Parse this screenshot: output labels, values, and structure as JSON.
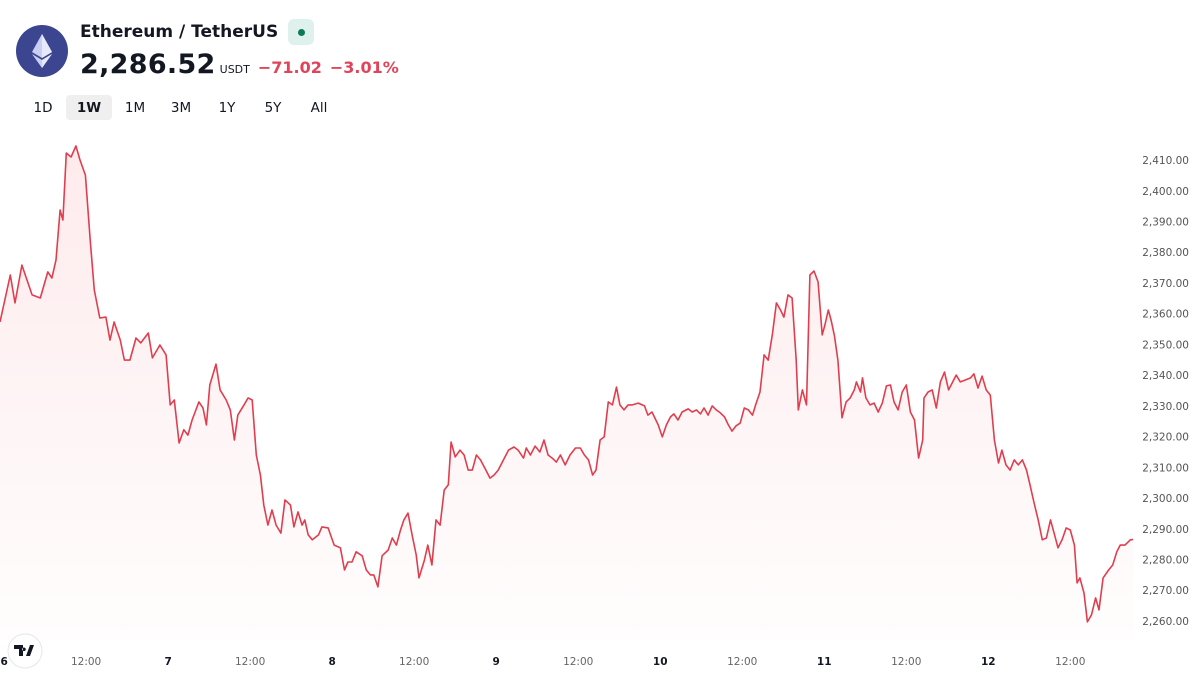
{
  "header": {
    "symbol": "Ethereum / TetherUS",
    "price": "2,286.52",
    "currency": "USDT",
    "change": "−71.02",
    "change_percent": "−3.01%"
  },
  "timeframes": {
    "options": [
      "1D",
      "1W",
      "1M",
      "3M",
      "1Y",
      "5Y",
      "All"
    ],
    "active": "1W"
  },
  "chart_data": {
    "type": "line",
    "color": "#e03e4e",
    "grid": false,
    "xlim": [
      -0.6,
      166.2
    ],
    "ylim": [
      2254,
      2416
    ],
    "xticks": [
      {
        "value": 0,
        "label": "6"
      },
      {
        "value": 12,
        "label": "12:00"
      },
      {
        "value": 24,
        "label": "7"
      },
      {
        "value": 36,
        "label": "12:00"
      },
      {
        "value": 48,
        "label": "8"
      },
      {
        "value": 60,
        "label": "12:00"
      },
      {
        "value": 72,
        "label": "9"
      },
      {
        "value": 84,
        "label": "12:00"
      },
      {
        "value": 96,
        "label": "10"
      },
      {
        "value": 108,
        "label": "12:00"
      },
      {
        "value": 120,
        "label": "11"
      },
      {
        "value": 132,
        "label": "12:00"
      },
      {
        "value": 144,
        "label": "12"
      },
      {
        "value": 156,
        "label": "12:00"
      }
    ],
    "yticks": [
      {
        "value": 2260,
        "label": "2,260.00"
      },
      {
        "value": 2270,
        "label": "2,270.00"
      },
      {
        "value": 2280,
        "label": "2,280.00"
      },
      {
        "value": 2290,
        "label": "2,290.00"
      },
      {
        "value": 2300,
        "label": "2,300.00"
      },
      {
        "value": 2310,
        "label": "2,310.00"
      },
      {
        "value": 2320,
        "label": "2,320.00"
      },
      {
        "value": 2330,
        "label": "2,330.00"
      },
      {
        "value": 2340,
        "label": "2,340.00"
      },
      {
        "value": 2350,
        "label": "2,350.00"
      },
      {
        "value": 2360,
        "label": "2,360.00"
      },
      {
        "value": 2370,
        "label": "2,370.00"
      },
      {
        "value": 2380,
        "label": "2,380.00"
      },
      {
        "value": 2390,
        "label": "2,390.00"
      },
      {
        "value": 2400,
        "label": "2,400.00"
      },
      {
        "value": 2410,
        "label": "2,410.00"
      }
    ],
    "x": [
      -0.6,
      0.9,
      1.6,
      2.6,
      4.1,
      5.3,
      6.4,
      7.0,
      7.6,
      8.2,
      8.6,
      9.1,
      9.8,
      10.5,
      11.1,
      11.9,
      12.6,
      13.2,
      14.0,
      14.9,
      15.5,
      16.1,
      17.0,
      17.6,
      18.4,
      19.3,
      20.0,
      21.1,
      21.7,
      22.8,
      23.7,
      24.3,
      24.9,
      25.6,
      26.3,
      26.9,
      27.5,
      28.5,
      29.1,
      29.6,
      30.1,
      31.0,
      31.6,
      32.5,
      33.1,
      33.7,
      34.2,
      35.1,
      35.7,
      36.3,
      36.9,
      37.5,
      38.0,
      38.6,
      39.2,
      39.8,
      40.5,
      41.1,
      41.9,
      42.4,
      43.0,
      43.6,
      44.0,
      44.5,
      45.1,
      46.0,
      46.5,
      47.4,
      48.3,
      49.2,
      49.8,
      50.3,
      50.9,
      51.5,
      52.4,
      53.0,
      53.6,
      54.1,
      54.7,
      55.3,
      56.2,
      56.8,
      57.4,
      58.0,
      58.5,
      59.1,
      59.7,
      60.3,
      60.7,
      61.5,
      62.0,
      62.6,
      63.2,
      63.8,
      64.4,
      65.0,
      65.4,
      66.0,
      66.7,
      67.3,
      67.9,
      68.5,
      69.1,
      69.7,
      70.5,
      71.1,
      71.7,
      72.3,
      72.9,
      73.8,
      74.6,
      75.2,
      76.0,
      76.4,
      77.0,
      77.7,
      78.4,
      79.0,
      79.6,
      80.2,
      80.8,
      81.4,
      82.1,
      82.8,
      83.6,
      84.3,
      84.9,
      85.5,
      86.1,
      86.6,
      87.2,
      87.8,
      88.4,
      89.0,
      89.6,
      90.1,
      90.7,
      91.3,
      91.9,
      92.8,
      93.7,
      94.2,
      94.8,
      95.7,
      96.3,
      96.9,
      97.5,
      98.0,
      98.6,
      99.2,
      100.1,
      100.7,
      101.3,
      101.9,
      102.4,
      103.0,
      103.6,
      104.2,
      104.8,
      105.4,
      105.9,
      106.5,
      107.1,
      107.7,
      108.3,
      108.9,
      109.5,
      110.0,
      110.6,
      111.2,
      111.8,
      112.4,
      113.0,
      113.6,
      114.1,
      114.7,
      115.3,
      115.9,
      116.2,
      116.8,
      117.4,
      117.9,
      118.5,
      119.1,
      119.7,
      120.1,
      120.6,
      121.0,
      121.5,
      122.0,
      122.6,
      123.2,
      123.8,
      124.4,
      124.7,
      125.3,
      125.6,
      126.1,
      126.7,
      127.3,
      127.9,
      128.5,
      129.1,
      129.7,
      130.2,
      130.8,
      131.4,
      132.0,
      132.6,
      133.2,
      133.8,
      134.4,
      134.6,
      135.2,
      135.8,
      136.4,
      137.0,
      137.6,
      138.2,
      138.8,
      139.3,
      139.9,
      140.6,
      141.4,
      141.9,
      142.5,
      143.1,
      143.7,
      144.3,
      144.9,
      145.5,
      146.0,
      146.6,
      147.2,
      147.8,
      148.4,
      149.0,
      149.6,
      150.1,
      150.7,
      151.3,
      151.9,
      152.5,
      153.1,
      153.7,
      154.2,
      154.8,
      155.4,
      156.0,
      156.6,
      157.0,
      157.4,
      158.0,
      158.5,
      159.1,
      159.7,
      160.2,
      160.8,
      161.6,
      162.2,
      162.8,
      163.3,
      164.0,
      164.8,
      165.2
    ],
    "values": [
      2357.3,
      2372.6,
      2363.5,
      2375.8,
      2366.1,
      2365.1,
      2373.6,
      2371.6,
      2377.5,
      2393.7,
      2390.5,
      2412.3,
      2411.0,
      2414.6,
      2410.0,
      2405.1,
      2384.0,
      2367.7,
      2358.6,
      2358.9,
      2351.4,
      2357.3,
      2351.4,
      2344.9,
      2344.9,
      2352.1,
      2350.5,
      2353.7,
      2345.6,
      2349.8,
      2346.6,
      2330.3,
      2331.9,
      2317.9,
      2322.2,
      2320.5,
      2325.4,
      2331.3,
      2329.3,
      2323.8,
      2336.8,
      2343.6,
      2335.2,
      2331.9,
      2328.7,
      2318.9,
      2327.0,
      2330.3,
      2332.6,
      2331.9,
      2314.0,
      2307.5,
      2297.7,
      2291.2,
      2296.1,
      2291.2,
      2288.6,
      2299.4,
      2297.7,
      2290.6,
      2295.5,
      2291.2,
      2292.9,
      2288.0,
      2286.4,
      2288.0,
      2290.6,
      2290.3,
      2284.7,
      2283.8,
      2276.6,
      2279.2,
      2279.2,
      2282.5,
      2281.2,
      2276.6,
      2275.0,
      2275.0,
      2271.1,
      2281.2,
      2283.1,
      2287.0,
      2284.7,
      2289.6,
      2292.9,
      2295.1,
      2288.0,
      2281.5,
      2274.0,
      2279.8,
      2284.7,
      2278.2,
      2292.9,
      2291.2,
      2302.6,
      2304.3,
      2318.2,
      2313.4,
      2315.6,
      2314.0,
      2309.1,
      2309.1,
      2314.0,
      2312.4,
      2309.1,
      2306.5,
      2307.5,
      2309.1,
      2311.7,
      2315.6,
      2316.6,
      2315.6,
      2313.0,
      2316.3,
      2314.0,
      2316.9,
      2315.0,
      2318.9,
      2314.0,
      2313.0,
      2311.7,
      2314.0,
      2310.8,
      2314.0,
      2316.3,
      2316.3,
      2314.0,
      2312.4,
      2307.5,
      2309.1,
      2318.9,
      2319.9,
      2331.3,
      2330.3,
      2336.1,
      2330.3,
      2328.7,
      2330.3,
      2330.3,
      2330.9,
      2330.0,
      2327.0,
      2328.0,
      2323.8,
      2319.9,
      2323.8,
      2326.4,
      2327.4,
      2325.4,
      2328.0,
      2329.0,
      2328.0,
      2328.7,
      2327.4,
      2329.3,
      2327.0,
      2330.0,
      2328.7,
      2327.7,
      2326.4,
      2324.1,
      2321.8,
      2323.5,
      2324.4,
      2329.3,
      2328.7,
      2327.0,
      2330.6,
      2334.5,
      2346.6,
      2344.9,
      2353.1,
      2363.5,
      2361.2,
      2358.9,
      2366.1,
      2365.1,
      2344.9,
      2328.7,
      2335.2,
      2330.3,
      2372.6,
      2373.9,
      2370.3,
      2353.1,
      2356.3,
      2361.2,
      2357.9,
      2352.7,
      2344.9,
      2326.1,
      2331.3,
      2332.6,
      2335.2,
      2337.8,
      2334.5,
      2339.1,
      2332.6,
      2330.3,
      2330.9,
      2328.0,
      2330.9,
      2336.5,
      2336.8,
      2331.3,
      2328.7,
      2334.5,
      2336.8,
      2328.0,
      2325.4,
      2313.0,
      2318.9,
      2332.6,
      2334.5,
      2335.2,
      2329.3,
      2337.8,
      2341.0,
      2335.2,
      2337.8,
      2340.0,
      2337.8,
      2338.4,
      2339.1,
      2340.4,
      2335.8,
      2339.7,
      2335.2,
      2333.5,
      2318.9,
      2311.4,
      2315.6,
      2310.8,
      2309.1,
      2312.4,
      2310.8,
      2312.4,
      2309.1,
      2304.3,
      2298.4,
      2292.9,
      2286.4,
      2287.0,
      2292.9,
      2288.0,
      2283.8,
      2286.4,
      2290.3,
      2289.6,
      2284.7,
      2272.4,
      2274.0,
      2269.1,
      2259.7,
      2262.0,
      2267.5,
      2263.6,
      2274.0,
      2276.6,
      2278.2,
      2282.5,
      2284.7,
      2284.7,
      2286.4,
      2286.5
    ]
  }
}
